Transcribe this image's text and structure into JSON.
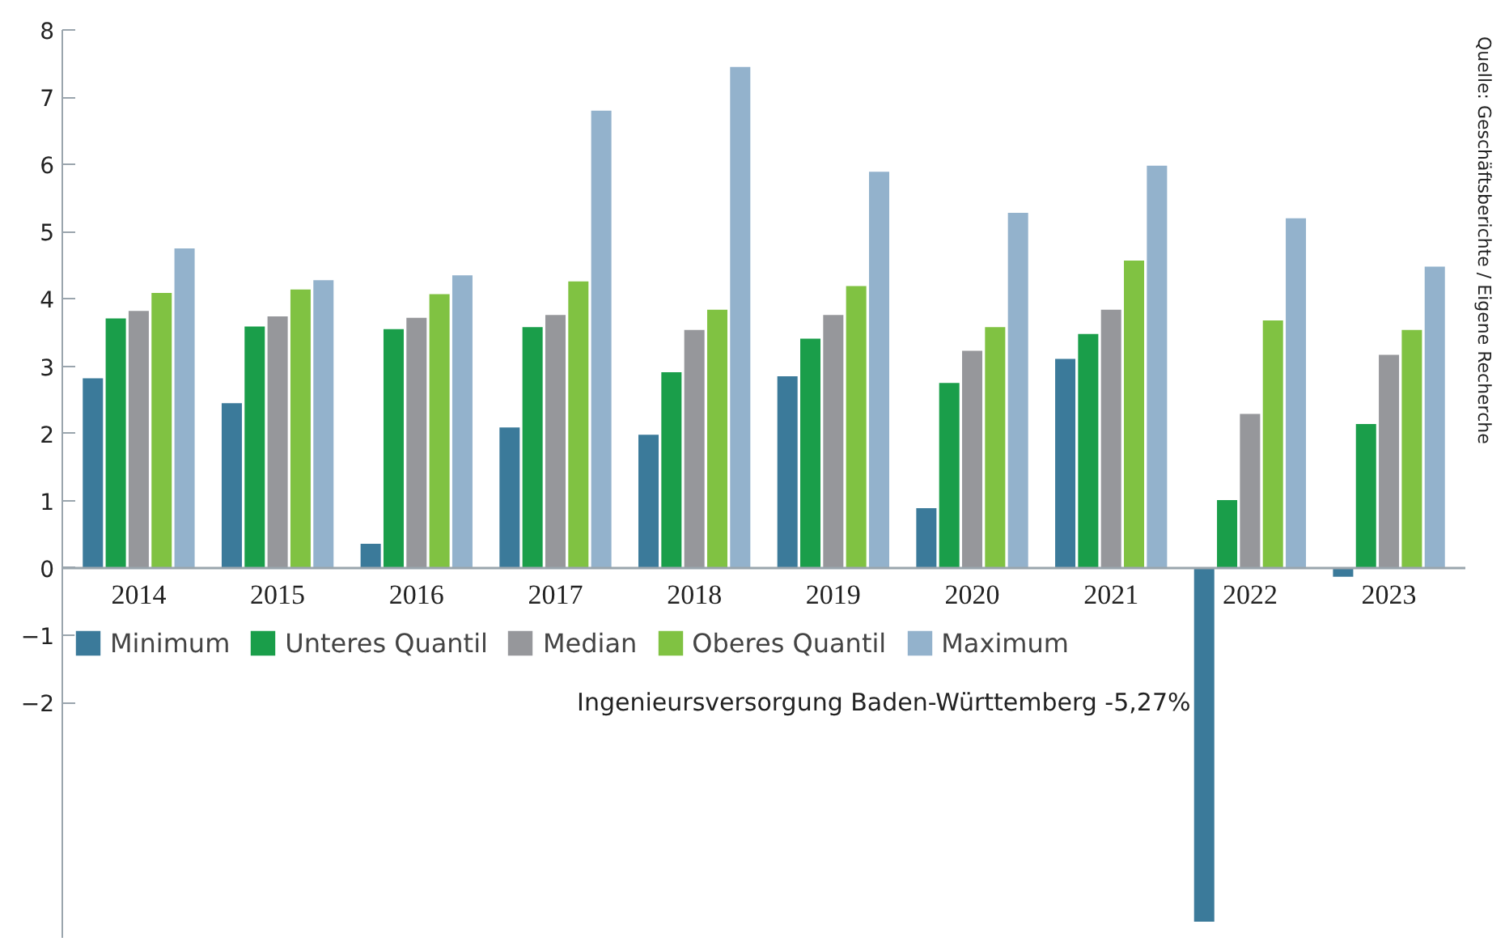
{
  "chart_data": {
    "type": "bar",
    "categories": [
      "2014",
      "2015",
      "2016",
      "2017",
      "2018",
      "2019",
      "2020",
      "2021",
      "2022",
      "2023"
    ],
    "series": [
      {
        "name": "Minimum",
        "color": "#3b7a9a",
        "values": [
          2.83,
          2.46,
          0.37,
          2.1,
          1.99,
          2.86,
          0.9,
          3.12,
          -5.27,
          -0.14
        ]
      },
      {
        "name": "Unteres Quantil",
        "color": "#1a9e4a",
        "values": [
          3.72,
          3.6,
          3.56,
          3.59,
          2.92,
          3.42,
          2.76,
          3.49,
          1.02,
          2.15
        ]
      },
      {
        "name": "Median",
        "color": "#96979b",
        "values": [
          3.83,
          3.75,
          3.73,
          3.77,
          3.55,
          3.77,
          3.24,
          3.85,
          2.3,
          3.18
        ]
      },
      {
        "name": "Oberes Quantil",
        "color": "#80c242",
        "values": [
          4.1,
          4.15,
          4.08,
          4.27,
          3.85,
          4.2,
          3.59,
          4.58,
          3.69,
          3.55
        ]
      },
      {
        "name": "Maximum",
        "color": "#93b2cc",
        "values": [
          4.76,
          4.29,
          4.36,
          6.81,
          7.46,
          5.9,
          5.29,
          5.99,
          5.21,
          4.49
        ]
      }
    ],
    "ylim": [
      -5.5,
      8
    ],
    "yticks": [
      -2,
      -1,
      0,
      1,
      2,
      3,
      4,
      5,
      6,
      7,
      8
    ],
    "grid": false,
    "legend": "bottom left",
    "annotations": [
      "Ingenieursversorgung Baden-Württemberg -5,27%",
      "Quelle: Geschäftsberichte / Eigene Recherche"
    ]
  }
}
